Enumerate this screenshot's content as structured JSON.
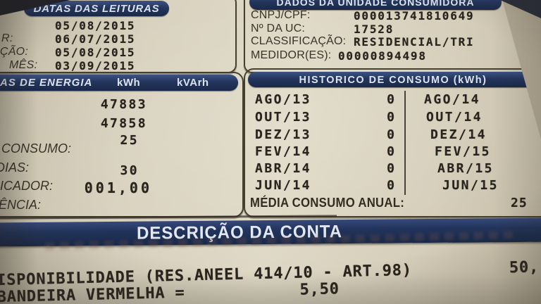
{
  "bill": {
    "datas_box": {
      "title": "DATAS DAS LEITURAS",
      "rows": [
        {
          "label": "",
          "value": "05/08/2015"
        },
        {
          "label": "R:",
          "value": "06/07/2015"
        },
        {
          "label": "TAÇÃO:",
          "value": "05/08/2015"
        },
        {
          "label": "MÊS:",
          "value": "03/09/2015"
        }
      ]
    },
    "dados_box": {
      "title": "DADOS DA UNIDADE CONSUMIDORA",
      "rows": [
        {
          "label": "CNPJ/CPF:",
          "value": "000013741810649"
        },
        {
          "label": "Nº DA UC:",
          "value": "17528"
        },
        {
          "label": "CLASSIFICAÇÃO:",
          "value": "RESIDENCIAL/TRI"
        },
        {
          "label": "MEDIDOR(ES):",
          "value": "00000894498"
        }
      ]
    },
    "energia_box": {
      "title": "AS DE ENERGIA",
      "col_kwh": "kWh",
      "col_kvarh": "kVArh",
      "rows": [
        {
          "label": "",
          "kwh": "47883"
        },
        {
          "label": "",
          "kwh": "47858"
        },
        {
          "label": "CONSUMO:",
          "kwh": "25"
        },
        {
          "label": "DIAS:",
          "kwh": "30"
        },
        {
          "label": "LICADOR:",
          "kwh": "001,00"
        },
        {
          "label": "ÊNCIA:",
          "kwh": ""
        }
      ]
    },
    "historico_box": {
      "title": "HISTORICO DE CONSUMO (kWh)",
      "rows": [
        {
          "month_left": "AGO/13",
          "value": "0",
          "month_right": "AGO/14"
        },
        {
          "month_left": "OUT/13",
          "value": "0",
          "month_right": "OUT/14"
        },
        {
          "month_left": "DEZ/13",
          "value": "0",
          "month_right": "DEZ/14"
        },
        {
          "month_left": "FEV/14",
          "value": "0",
          "month_right": "FEV/15"
        },
        {
          "month_left": "ABR/14",
          "value": "0",
          "month_right": "ABR/15"
        },
        {
          "month_left": "JUN/14",
          "value": "0",
          "month_right": "JUN/15"
        }
      ],
      "media_label": "MÉDIA CONSUMO ANUAL:",
      "media_value": "25"
    },
    "descricao": {
      "title": "DESCRIÇÃO DA CONTA",
      "lines": [
        {
          "text": "ISPONIBILIDADE (RES.ANEEL 414/10 - ART.98)",
          "value": "50,"
        },
        {
          "text": "BANDEIRA VERMELHA =",
          "value": "5,50"
        }
      ]
    },
    "colors": {
      "header_bar": "#22345c",
      "paper": "#d6ceba",
      "ink": "#29241d"
    }
  }
}
